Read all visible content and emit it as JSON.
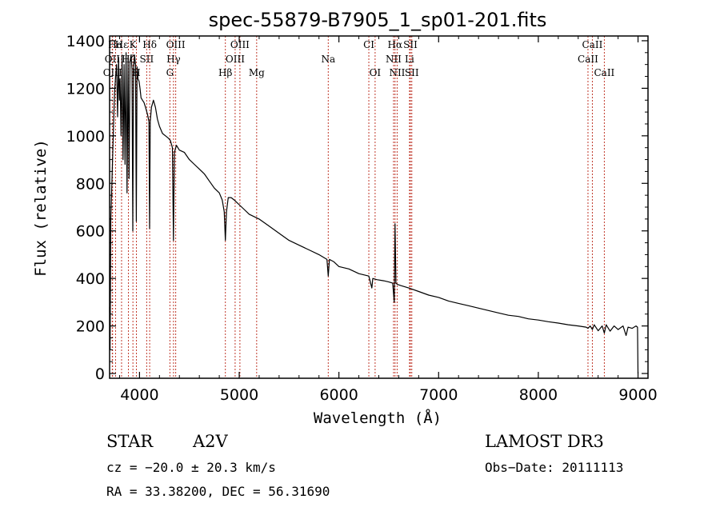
{
  "chart_data": {
    "type": "line",
    "title": "spec-55879-B7905_1_sp01-201.fits",
    "xlabel": "Wavelength (Å)",
    "ylabel": "Flux (relative)",
    "xlim": [
      3700,
      9100
    ],
    "ylim": [
      -20,
      1420
    ],
    "x_ticks": [
      4000,
      5000,
      6000,
      7000,
      8000,
      9000
    ],
    "y_ticks": [
      0,
      200,
      400,
      600,
      800,
      1000,
      1200,
      1400
    ],
    "line_color": "#000000",
    "marker_color": "#c0392b",
    "series": [
      {
        "name": "flux",
        "x": [
          3700,
          3705,
          3712,
          3720,
          3730,
          3740,
          3750,
          3760,
          3770,
          3780,
          3790,
          3798,
          3805,
          3815,
          3825,
          3835,
          3845,
          3855,
          3865,
          3875,
          3885,
          3895,
          3905,
          3915,
          3925,
          3933,
          3940,
          3950,
          3960,
          3968,
          3975,
          3985,
          3995,
          4005,
          4015,
          4030,
          4045,
          4060,
          4080,
          4095,
          4101,
          4108,
          4120,
          4140,
          4160,
          4180,
          4200,
          4230,
          4260,
          4290,
          4310,
          4330,
          4340,
          4350,
          4370,
          4400,
          4450,
          4500,
          4550,
          4600,
          4650,
          4700,
          4750,
          4800,
          4830,
          4850,
          4861,
          4872,
          4890,
          4920,
          4950,
          5000,
          5050,
          5100,
          5150,
          5200,
          5300,
          5400,
          5500,
          5600,
          5700,
          5800,
          5880,
          5893,
          5905,
          5950,
          6000,
          6100,
          6200,
          6300,
          6330,
          6340,
          6380,
          6450,
          6500,
          6540,
          6555,
          6563,
          6572,
          6585,
          6620,
          6700,
          6800,
          6900,
          7000,
          7100,
          7200,
          7300,
          7400,
          7500,
          7600,
          7700,
          7800,
          7900,
          8000,
          8100,
          8200,
          8300,
          8400,
          8480,
          8498,
          8520,
          8542,
          8560,
          8600,
          8640,
          8662,
          8680,
          8720,
          8760,
          8800,
          8850,
          8880,
          8900,
          8940,
          8980,
          8995,
          9000
        ],
        "y": [
          280,
          100,
          650,
          760,
          900,
          1050,
          1180,
          1250,
          1300,
          1080,
          1330,
          1150,
          1240,
          1000,
          1340,
          900,
          1300,
          880,
          1350,
          760,
          1330,
          820,
          1310,
          1340,
          1280,
          600,
          1280,
          1340,
          1300,
          640,
          1290,
          1240,
          1230,
          1200,
          1160,
          1150,
          1140,
          1120,
          1090,
          1060,
          610,
          1060,
          1120,
          1150,
          1120,
          1070,
          1040,
          1010,
          1000,
          990,
          980,
          950,
          560,
          930,
          960,
          940,
          930,
          900,
          880,
          860,
          840,
          810,
          780,
          760,
          730,
          680,
          560,
          680,
          740,
          740,
          730,
          710,
          690,
          670,
          660,
          650,
          620,
          590,
          560,
          540,
          520,
          500,
          480,
          410,
          480,
          470,
          450,
          440,
          420,
          410,
          360,
          400,
          395,
          390,
          385,
          380,
          300,
          630,
          380,
          375,
          370,
          360,
          345,
          330,
          320,
          305,
          295,
          285,
          275,
          265,
          255,
          245,
          240,
          230,
          225,
          218,
          212,
          205,
          200,
          195,
          190,
          200,
          185,
          205,
          180,
          200,
          170,
          205,
          178,
          200,
          185,
          200,
          160,
          195,
          190,
          200,
          195,
          0
        ]
      }
    ],
    "spectral_lines": [
      {
        "label": "Hα",
        "x": 3760,
        "row": 0
      },
      {
        "label": "Hε",
        "x": 3820,
        "row": 0
      },
      {
        "label": "K",
        "x": 3934,
        "row": 0
      },
      {
        "label": "Hδ",
        "x": 4102,
        "row": 0
      },
      {
        "label": "OIII",
        "x": 4363,
        "row": 0
      },
      {
        "label": "OIII",
        "x": 5007,
        "row": 0
      },
      {
        "label": "CI",
        "x": 6300,
        "row": 0
      },
      {
        "label": "Hα",
        "x": 6563,
        "row": 0
      },
      {
        "label": "SII",
        "x": 6717,
        "row": 0
      },
      {
        "label": "CaII",
        "x": 8542,
        "row": 0
      },
      {
        "label": "OII",
        "x": 3727,
        "row": 1
      },
      {
        "label": "Hζ",
        "x": 3889,
        "row": 1
      },
      {
        "label": "SII",
        "x": 4072,
        "row": 1
      },
      {
        "label": "Hγ",
        "x": 4341,
        "row": 1
      },
      {
        "label": "OIII",
        "x": 4959,
        "row": 1
      },
      {
        "label": "Na",
        "x": 5893,
        "row": 1
      },
      {
        "label": "NII",
        "x": 6548,
        "row": 1
      },
      {
        "label": "Li",
        "x": 6708,
        "row": 1
      },
      {
        "label": "CaII",
        "x": 8498,
        "row": 1
      },
      {
        "label": "OIII",
        "x": 3730,
        "row": 2
      },
      {
        "label": "H",
        "x": 3969,
        "row": 2
      },
      {
        "label": "G",
        "x": 4305,
        "row": 2
      },
      {
        "label": "Hβ",
        "x": 4861,
        "row": 2
      },
      {
        "label": "Mg",
        "x": 5175,
        "row": 2
      },
      {
        "label": "OI",
        "x": 6363,
        "row": 2
      },
      {
        "label": "NII",
        "x": 6584,
        "row": 2
      },
      {
        "label": "SII",
        "x": 6731,
        "row": 2
      },
      {
        "label": "CaII",
        "x": 8662,
        "row": 2
      }
    ]
  },
  "info": {
    "object_class": "STAR",
    "subclass": "A2V",
    "survey": "LAMOST DR3",
    "redshift": "cz = −20.0 ± 20.3 km/s",
    "obs_date": "Obs−Date: 20111113",
    "coords": "RA =  33.38200, DEC =  56.31690"
  }
}
